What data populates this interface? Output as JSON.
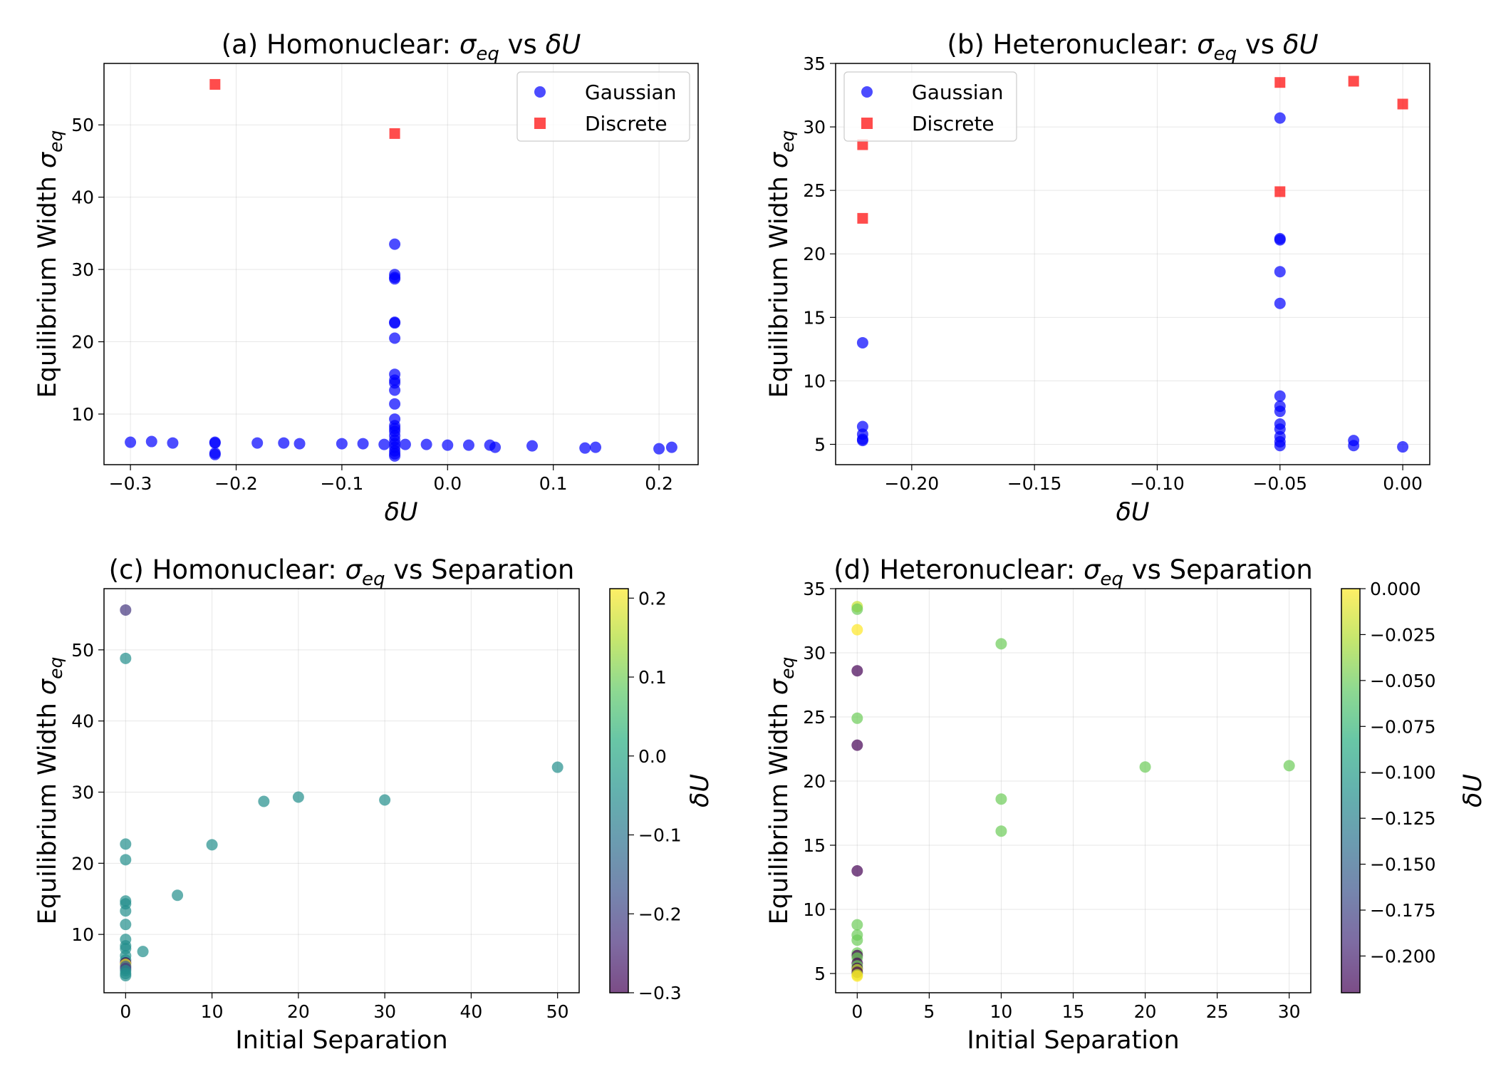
{
  "chart_data": [
    {
      "id": "a",
      "type": "scatter",
      "title_prefix": "(a) Homonuclear: ",
      "title_suffix": " vs ",
      "title_var": "δU",
      "xlabel": "δU",
      "ylabel": "Equilibrium Width",
      "xlim": [
        -0.325,
        0.237
      ],
      "ylim": [
        3,
        58.5
      ],
      "xticks": [
        -0.3,
        -0.2,
        -0.1,
        0.0,
        0.1,
        0.2
      ],
      "xtick_labels": [
        "−0.3",
        "−0.2",
        "−0.1",
        "0.0",
        "0.1",
        "0.2"
      ],
      "yticks": [
        10,
        20,
        30,
        40,
        50
      ],
      "ytick_labels": [
        "10",
        "20",
        "30",
        "40",
        "50"
      ],
      "legend": "top-right",
      "series": [
        {
          "name": "Gaussian",
          "marker": "circle",
          "color": "#0000ff",
          "points": [
            [
              -0.3,
              6.1
            ],
            [
              -0.28,
              6.2
            ],
            [
              -0.26,
              6.0
            ],
            [
              -0.22,
              6.1
            ],
            [
              -0.22,
              6.0
            ],
            [
              -0.22,
              4.6
            ],
            [
              -0.22,
              4.4
            ],
            [
              -0.18,
              6.0
            ],
            [
              -0.155,
              6.0
            ],
            [
              -0.14,
              5.9
            ],
            [
              -0.1,
              5.9
            ],
            [
              -0.08,
              5.9
            ],
            [
              -0.06,
              5.8
            ],
            [
              -0.04,
              5.8
            ],
            [
              -0.02,
              5.8
            ],
            [
              0.0,
              5.7
            ],
            [
              0.02,
              5.7
            ],
            [
              0.04,
              5.7
            ],
            [
              0.045,
              5.4
            ],
            [
              0.08,
              5.6
            ],
            [
              0.13,
              5.3
            ],
            [
              0.14,
              5.4
            ],
            [
              0.2,
              5.2
            ],
            [
              0.212,
              5.4
            ],
            [
              -0.05,
              33.5
            ],
            [
              -0.05,
              29.3
            ],
            [
              -0.05,
              28.9
            ],
            [
              -0.05,
              28.7
            ],
            [
              -0.05,
              22.7
            ],
            [
              -0.05,
              22.6
            ],
            [
              -0.05,
              20.5
            ],
            [
              -0.05,
              15.5
            ],
            [
              -0.05,
              14.7
            ],
            [
              -0.05,
              14.3
            ],
            [
              -0.05,
              13.3
            ],
            [
              -0.05,
              11.4
            ],
            [
              -0.05,
              9.3
            ],
            [
              -0.05,
              8.4
            ],
            [
              -0.05,
              8.0
            ],
            [
              -0.05,
              7.6
            ],
            [
              -0.05,
              7.0
            ],
            [
              -0.05,
              6.4
            ],
            [
              -0.05,
              5.9
            ],
            [
              -0.05,
              5.4
            ],
            [
              -0.05,
              4.9
            ],
            [
              -0.05,
              4.5
            ],
            [
              -0.05,
              4.2
            ]
          ]
        },
        {
          "name": "Discrete",
          "marker": "square",
          "color": "#ff0000",
          "points": [
            [
              -0.22,
              55.6
            ],
            [
              -0.05,
              48.8
            ]
          ]
        }
      ]
    },
    {
      "id": "b",
      "type": "scatter",
      "title_prefix": "(b) Heteronuclear: ",
      "title_suffix": " vs ",
      "title_var": "δU",
      "xlabel": "δU",
      "ylabel": "Equilibrium Width",
      "xlim": [
        -0.231,
        0.011
      ],
      "ylim": [
        3.4,
        35.0
      ],
      "xticks": [
        -0.2,
        -0.15,
        -0.1,
        -0.05,
        0.0
      ],
      "xtick_labels": [
        "−0.20",
        "−0.15",
        "−0.10",
        "−0.05",
        "0.00"
      ],
      "yticks": [
        5,
        10,
        15,
        20,
        25,
        30,
        35
      ],
      "ytick_labels": [
        "5",
        "10",
        "15",
        "20",
        "25",
        "30",
        "35"
      ],
      "legend": "top-left",
      "series": [
        {
          "name": "Gaussian",
          "marker": "circle",
          "color": "#0000ff",
          "points": [
            [
              -0.22,
              13.0
            ],
            [
              -0.22,
              6.4
            ],
            [
              -0.22,
              5.8
            ],
            [
              -0.22,
              5.4
            ],
            [
              -0.22,
              5.3
            ],
            [
              -0.05,
              30.7
            ],
            [
              -0.05,
              21.2
            ],
            [
              -0.05,
              21.1
            ],
            [
              -0.05,
              18.6
            ],
            [
              -0.05,
              16.1
            ],
            [
              -0.05,
              8.8
            ],
            [
              -0.05,
              8.0
            ],
            [
              -0.05,
              7.6
            ],
            [
              -0.05,
              6.6
            ],
            [
              -0.05,
              6.2
            ],
            [
              -0.05,
              5.6
            ],
            [
              -0.05,
              5.2
            ],
            [
              -0.05,
              4.9
            ],
            [
              -0.02,
              5.3
            ],
            [
              -0.02,
              4.9
            ],
            [
              0.0,
              4.8
            ]
          ]
        },
        {
          "name": "Discrete",
          "marker": "square",
          "color": "#ff0000",
          "points": [
            [
              -0.22,
              28.6
            ],
            [
              -0.22,
              22.8
            ],
            [
              -0.05,
              33.5
            ],
            [
              -0.05,
              24.9
            ],
            [
              -0.02,
              33.6
            ],
            [
              0.0,
              31.8
            ]
          ]
        }
      ]
    },
    {
      "id": "c",
      "type": "scatter",
      "title_prefix": "(c) Homonuclear: ",
      "title_suffix": " vs Separation",
      "title_var": "",
      "xlabel": "Initial Separation",
      "ylabel": "Equilibrium Width",
      "xlim": [
        -2.5,
        52.5
      ],
      "ylim": [
        1.8,
        58.6
      ],
      "xticks": [
        0,
        10,
        20,
        30,
        40,
        50
      ],
      "xtick_labels": [
        "0",
        "10",
        "20",
        "30",
        "40",
        "50"
      ],
      "yticks": [
        10,
        20,
        30,
        40,
        50
      ],
      "ytick_labels": [
        "10",
        "20",
        "30",
        "40",
        "50"
      ],
      "colorbar": {
        "label": "δU",
        "vmin": -0.3,
        "vmax": 0.212,
        "ticks": [
          -0.3,
          -0.2,
          -0.1,
          0.0,
          0.1,
          0.2
        ],
        "tick_labels": [
          "−0.3",
          "−0.2",
          "−0.1",
          "0.0",
          "0.1",
          "0.2"
        ]
      },
      "points": [
        [
          0,
          55.6,
          -0.22
        ],
        [
          0,
          48.8,
          -0.05
        ],
        [
          0,
          22.7,
          -0.05
        ],
        [
          0,
          20.5,
          -0.05
        ],
        [
          0,
          14.7,
          -0.05
        ],
        [
          0,
          14.3,
          -0.05
        ],
        [
          0,
          13.3,
          -0.05
        ],
        [
          0,
          11.4,
          -0.05
        ],
        [
          0,
          9.3,
          -0.05
        ],
        [
          0,
          8.4,
          -0.05
        ],
        [
          0,
          8.0,
          -0.05
        ],
        [
          0,
          7.0,
          -0.05
        ],
        [
          0,
          6.4,
          -0.05
        ],
        [
          0,
          6.0,
          -0.3
        ],
        [
          0,
          5.8,
          0.2
        ],
        [
          0,
          5.5,
          -0.14
        ],
        [
          0,
          5.2,
          -0.22
        ],
        [
          0,
          4.9,
          -0.05
        ],
        [
          0,
          4.5,
          -0.05
        ],
        [
          0,
          4.2,
          -0.05
        ],
        [
          2,
          7.6,
          -0.05
        ],
        [
          6,
          15.5,
          -0.05
        ],
        [
          10,
          22.6,
          -0.05
        ],
        [
          16,
          28.7,
          -0.05
        ],
        [
          20,
          29.3,
          -0.05
        ],
        [
          30,
          28.9,
          -0.05
        ],
        [
          50,
          33.5,
          -0.05
        ]
      ]
    },
    {
      "id": "d",
      "type": "scatter",
      "title_prefix": "(d) Heteronuclear: ",
      "title_suffix": " vs Separation",
      "title_var": "",
      "xlabel": "Initial Separation",
      "ylabel": "Equilibrium Width",
      "xlim": [
        -1.5,
        31.5
      ],
      "ylim": [
        3.5,
        35.0
      ],
      "xticks": [
        0,
        5,
        10,
        15,
        20,
        25,
        30
      ],
      "xtick_labels": [
        "0",
        "5",
        "10",
        "15",
        "20",
        "25",
        "30"
      ],
      "yticks": [
        5,
        10,
        15,
        20,
        25,
        30,
        35
      ],
      "ytick_labels": [
        "5",
        "10",
        "15",
        "20",
        "25",
        "30",
        "35"
      ],
      "colorbar": {
        "label": "δU",
        "vmin": -0.22,
        "vmax": 0.0,
        "ticks": [
          -0.2,
          -0.175,
          -0.15,
          -0.125,
          -0.1,
          -0.075,
          -0.05,
          -0.025,
          0.0
        ],
        "tick_labels": [
          "−0.200",
          "−0.175",
          "−0.150",
          "−0.125",
          "−0.100",
          "−0.075",
          "−0.050",
          "−0.025",
          "0.000"
        ]
      },
      "points": [
        [
          0,
          33.6,
          -0.02
        ],
        [
          0,
          33.4,
          -0.05
        ],
        [
          0,
          31.8,
          0.0
        ],
        [
          0,
          28.6,
          -0.22
        ],
        [
          0,
          24.9,
          -0.05
        ],
        [
          0,
          22.8,
          -0.22
        ],
        [
          0,
          13.0,
          -0.22
        ],
        [
          0,
          8.8,
          -0.05
        ],
        [
          0,
          8.0,
          -0.05
        ],
        [
          0,
          7.6,
          -0.05
        ],
        [
          0,
          6.6,
          -0.05
        ],
        [
          0,
          6.4,
          -0.22
        ],
        [
          0,
          6.2,
          -0.05
        ],
        [
          0,
          5.8,
          -0.22
        ],
        [
          0,
          5.6,
          -0.05
        ],
        [
          0,
          5.4,
          -0.22
        ],
        [
          0,
          5.3,
          -0.02
        ],
        [
          0,
          5.1,
          -0.22
        ],
        [
          0,
          4.9,
          -0.02
        ],
        [
          0,
          4.8,
          0.0
        ],
        [
          10,
          30.7,
          -0.05
        ],
        [
          10,
          18.6,
          -0.05
        ],
        [
          10,
          16.1,
          -0.05
        ],
        [
          20,
          21.1,
          -0.05
        ],
        [
          30,
          21.2,
          -0.05
        ]
      ]
    }
  ]
}
